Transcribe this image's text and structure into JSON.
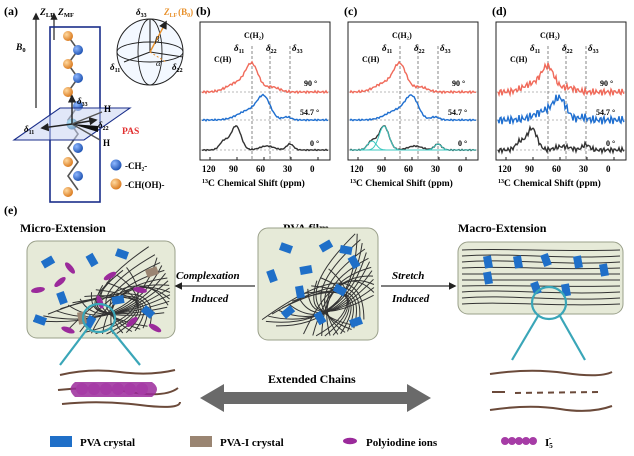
{
  "panel_a": {
    "label": "(a)",
    "z_lf": "Z",
    "z_lf_sub": "LF",
    "z_mf": "Z",
    "z_mf_sub": "MF",
    "b0": "B",
    "b0_sub": "0",
    "d33": "δ",
    "d33_sub": "33",
    "d11": "δ",
    "d11_sub": "11",
    "d22": "δ",
    "d22_sub": "22",
    "beta": "β",
    "alpha": "α",
    "zlf_b0": "Z",
    "zlf_b0_sub": "LF",
    "zlf_b0_paren": "(B",
    "zlf_b0_paren_sub": "0",
    "zlf_b0_close": ")",
    "h1": "H",
    "h2": "H",
    "pas": "PAS",
    "ch2": "-CH₂-",
    "choh": "-CH(OH)-",
    "colors": {
      "blue": "#1f5fbf",
      "orange": "#e8902a",
      "pas": "#e23030",
      "frame": "#1a2e8a"
    }
  },
  "spectra": [
    {
      "label": "(b)",
      "ch2": "C(H₂)",
      "ch": "C(H)",
      "d11": "δ",
      "d11_sub": "11",
      "d22": "δ",
      "d22_sub": "22",
      "d33": "δ",
      "d33_sub": "33",
      "angles": [
        "90 °",
        "54.7 °",
        "0 °"
      ],
      "ticks": [
        "120",
        "90",
        "60",
        "30",
        "0"
      ],
      "xlabel_sup": "13",
      "xlabel": "C Chemical Shift (ppm)"
    },
    {
      "label": "(c)",
      "ch2": "C(H₂)",
      "ch": "C(H)",
      "d11": "δ",
      "d11_sub": "11",
      "d22": "δ",
      "d22_sub": "22",
      "d33": "δ",
      "d33_sub": "33",
      "angles": [
        "90 °",
        "54.7 °",
        "0 °"
      ],
      "ticks": [
        "120",
        "90",
        "60",
        "30",
        "0"
      ],
      "xlabel_sup": "13",
      "xlabel": "C Chemical Shift (ppm)"
    },
    {
      "label": "(d)",
      "ch2": "C(H₂)",
      "ch": "C(H)",
      "d11": "δ",
      "d11_sub": "11",
      "d22": "δ",
      "d22_sub": "22",
      "d33": "δ",
      "d33_sub": "33",
      "angles": [
        "90 °",
        "54.7 °",
        "0 °"
      ],
      "ticks": [
        "120",
        "90",
        "60",
        "30",
        "0"
      ],
      "xlabel_sup": "13",
      "xlabel": "C Chemical Shift (ppm)"
    }
  ],
  "spectrum_colors": {
    "red": "#f06a5a",
    "blue": "#1f6fd0",
    "black": "#333333",
    "cyan": "#3cc8c0"
  },
  "panel_e": {
    "label": "(e)",
    "micro": "Micro-Extension",
    "pva_film": "PVA film",
    "macro": "Macro-Extension",
    "complexation": "Complexation",
    "complexation_induced": "Induced",
    "stretch": "Stretch",
    "stretch_induced": "Induced",
    "extended_chains": "Extended Chains",
    "legend": [
      {
        "name": "PVA crystal"
      },
      {
        "name": "PVA-I crystal"
      },
      {
        "name": "Polyiodine ions"
      },
      {
        "name": "I",
        "sub": "5",
        "sup": "-"
      }
    ],
    "colors": {
      "box": "#e6ead8",
      "crystal": "#1f6fc8",
      "pvai": "#9a8572",
      "iodine": "#9b2a9b",
      "loop": "#3aa6b8",
      "arrow": "#6a6a6a"
    }
  }
}
